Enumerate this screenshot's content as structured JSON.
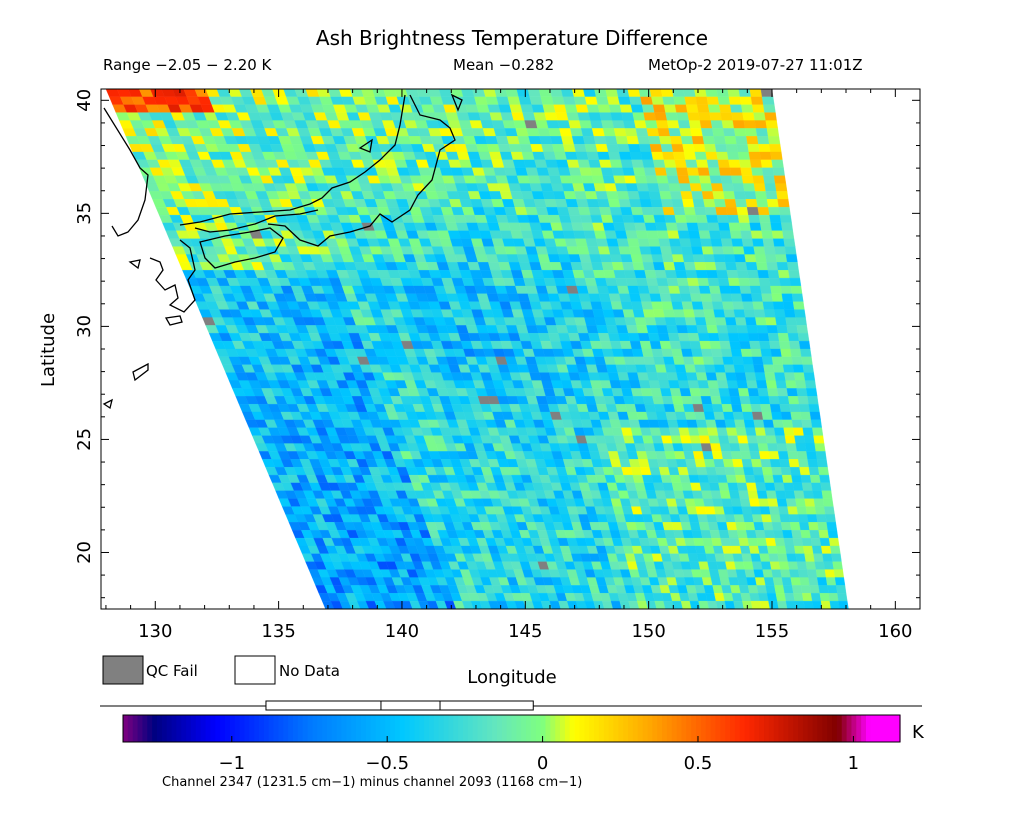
{
  "header": {
    "title": "Ash Brightness Temperature Difference",
    "range": "Range −2.05 − 2.20 K",
    "mean": "Mean −0.282",
    "satellite_time": "MetOp-2 2019-07-27 11:01Z"
  },
  "map": {
    "xlabel": "Longitude",
    "ylabel": "Latitude",
    "xlim": [
      127.8,
      161
    ],
    "ylim": [
      17.5,
      40.5
    ],
    "xticks": [
      130,
      135,
      140,
      145,
      150,
      155,
      160
    ],
    "yticks": [
      20,
      25,
      30,
      35,
      40
    ],
    "swath_corners_lonlat": {
      "top_left": [
        128.0,
        40.5
      ],
      "top_right": [
        155.0,
        40.5
      ],
      "bottom_left": [
        136.9,
        17.5
      ],
      "bottom_right": [
        158.1,
        17.5
      ]
    },
    "coastline_color": "#000000",
    "colors": [
      "#800080",
      "#000080",
      "#0000ff",
      "#0096ff",
      "#00c8ff",
      "#7fff7f",
      "#ffff00",
      "#ffa500",
      "#ff0000",
      "#800000",
      "#ff00ff"
    ]
  },
  "legend": {
    "qc_fail": "QC Fail",
    "no_data": "No Data",
    "qc_fail_color": "#808080",
    "no_data_color": "#ffffff"
  },
  "colorbar": {
    "range": [
      -1.35,
      1.15
    ],
    "ticks": [
      {
        "value": -1,
        "label": "−1"
      },
      {
        "value": -0.5,
        "label": "−0.5"
      },
      {
        "value": 0,
        "label": "0"
      },
      {
        "value": 0.5,
        "label": "0.5"
      },
      {
        "value": 1,
        "label": "1"
      }
    ],
    "unit": "K",
    "note": "Channel 2347 (1231.5 cm−1) minus channel 2093 (1168 cm−1)",
    "box_stats": {
      "min": -0.89,
      "q1": -0.52,
      "median": -0.33,
      "q3": -0.03
    }
  }
}
